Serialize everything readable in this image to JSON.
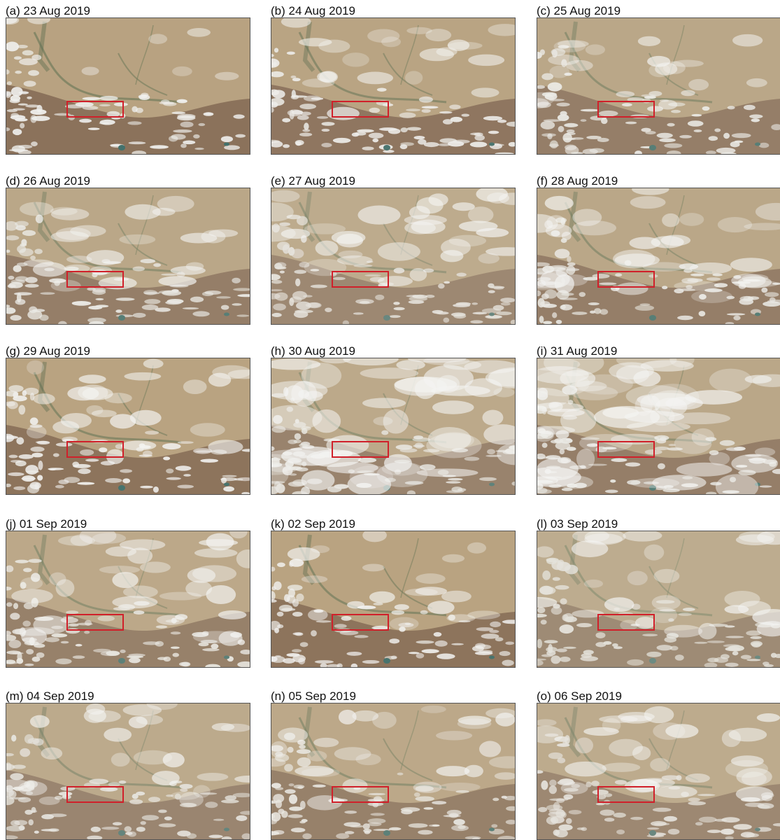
{
  "figure": {
    "panels": [
      {
        "label": "(a) 23 Aug 2019",
        "cloud": 0.15,
        "haze": 0.05
      },
      {
        "label": "(b) 24 Aug 2019",
        "cloud": 0.35,
        "haze": 0.15
      },
      {
        "label": "(c) 25 Aug 2019",
        "cloud": 0.3,
        "haze": 0.3
      },
      {
        "label": "(d) 26 Aug 2019",
        "cloud": 0.4,
        "haze": 0.3
      },
      {
        "label": "(e) 27 Aug 2019",
        "cloud": 0.55,
        "haze": 0.5
      },
      {
        "label": "(f) 28 Aug 2019",
        "cloud": 0.55,
        "haze": 0.3
      },
      {
        "label": "(g) 29 Aug 2019",
        "cloud": 0.4,
        "haze": 0.1
      },
      {
        "label": "(h) 30 Aug 2019",
        "cloud": 0.85,
        "haze": 0.4
      },
      {
        "label": "(i) 31 Aug 2019",
        "cloud": 0.9,
        "haze": 0.3
      },
      {
        "label": "(j) 01 Sep 2019",
        "cloud": 0.55,
        "haze": 0.35
      },
      {
        "label": "(k) 02 Sep 2019",
        "cloud": 0.3,
        "haze": 0.1
      },
      {
        "label": "(l) 03 Sep 2019",
        "cloud": 0.45,
        "haze": 0.55
      },
      {
        "label": "(m) 04 Sep 2019",
        "cloud": 0.4,
        "haze": 0.45
      },
      {
        "label": "(n) 05 Sep 2019",
        "cloud": 0.45,
        "haze": 0.35
      },
      {
        "label": "(o) 06 Sep 2019",
        "cloud": 0.5,
        "haze": 0.5
      }
    ],
    "colors": {
      "desert": "#b8a27f",
      "mountains": "#8a7058",
      "snow_cloud": "#f2f2f0",
      "haze": "#c9c1b0",
      "river": "#6f7a5a",
      "study_box": "#d0202a"
    }
  }
}
